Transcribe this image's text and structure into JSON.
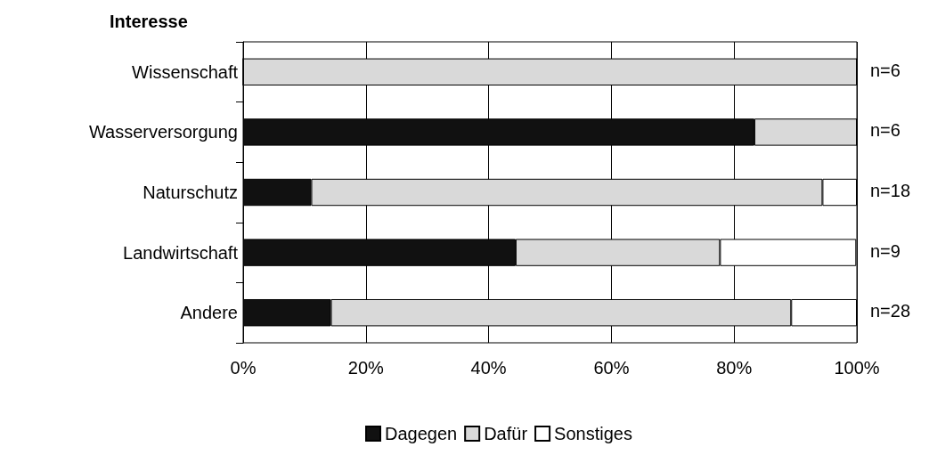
{
  "chart_data": {
    "type": "bar",
    "orientation": "horizontal",
    "stacked": true,
    "ylabel": "Interesse",
    "categories": [
      "Wissenschaft",
      "Wasserversorgung",
      "Naturschutz",
      "Landwirtschaft",
      "Andere"
    ],
    "series": [
      {
        "name": "Dagegen",
        "color": "#111111",
        "values": [
          0,
          83.3,
          11.1,
          44.4,
          14.3
        ]
      },
      {
        "name": "Dafür",
        "color": "#d9d9d9",
        "values": [
          100,
          16.7,
          83.3,
          33.3,
          75
        ]
      },
      {
        "name": "Sonstiges",
        "color": "#ffffff",
        "values": [
          0,
          0,
          5.6,
          22.2,
          10.7
        ]
      }
    ],
    "xlim": [
      0,
      100
    ],
    "xticks": [
      {
        "value": 0,
        "label": "0%"
      },
      {
        "value": 20,
        "label": "20%"
      },
      {
        "value": 40,
        "label": "40%"
      },
      {
        "value": 60,
        "label": "60%"
      },
      {
        "value": 80,
        "label": "80%"
      },
      {
        "value": 100,
        "label": "100%"
      }
    ],
    "annotations": [
      "n=6",
      "n=6",
      "n=18",
      "n=9",
      "n=28"
    ],
    "grid": "x",
    "legend": "bottom"
  }
}
